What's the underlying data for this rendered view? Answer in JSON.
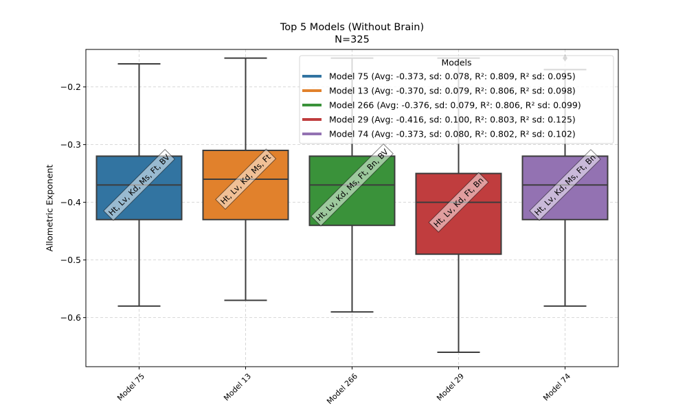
{
  "title": "Top 5 Models (Without Brain)",
  "subtitle": "N=325",
  "chart_data": {
    "type": "box",
    "title": "Top 5 Models (Without Brain)",
    "subtitle": "N=325",
    "xlabel": "",
    "ylabel": "Allometric Exponent",
    "ylim": [
      -0.685,
      -0.135
    ],
    "yticks": [
      -0.6,
      -0.5,
      -0.4,
      -0.3,
      -0.2
    ],
    "ytick_labels": [
      "−0.6",
      "−0.5",
      "−0.4",
      "−0.3",
      "−0.2"
    ],
    "grid": true,
    "legend": {
      "title": "Models",
      "position": "top-right"
    },
    "categories": [
      "Model 75",
      "Model 13",
      "Model 266",
      "Model 29",
      "Model 74"
    ],
    "boxes": [
      {
        "name": "Model 75",
        "color": "#3274a1",
        "whisker_low": -0.58,
        "q1": -0.43,
        "median": -0.37,
        "q3": -0.32,
        "whisker_high": -0.16,
        "outliers": [],
        "annotation": "Ht, Lv, Kd, Ms, Ft, BV",
        "legend": "Model 75 (Avg: -0.373, sd: 0.078, R²: 0.809, R² sd: 0.095)"
      },
      {
        "name": "Model 13",
        "color": "#e1812c",
        "whisker_low": -0.57,
        "q1": -0.43,
        "median": -0.36,
        "q3": -0.31,
        "whisker_high": -0.15,
        "outliers": [],
        "annotation": "Ht, Lv, Kd, Ms, Ft",
        "legend": "Model 13 (Avg: -0.370, sd: 0.079, R²: 0.806, R² sd: 0.098)"
      },
      {
        "name": "Model 266",
        "color": "#3a923a",
        "whisker_low": -0.59,
        "q1": -0.44,
        "median": -0.37,
        "q3": -0.32,
        "whisker_high": -0.15,
        "outliers": [],
        "annotation": "Ht, Lv, Kd, Ms, Ft, Bn, BV",
        "legend": "Model 266 (Avg: -0.376, sd: 0.079, R²: 0.806, R² sd: 0.099)"
      },
      {
        "name": "Model 29",
        "color": "#c03d3e",
        "whisker_low": -0.66,
        "q1": -0.49,
        "median": -0.4,
        "q3": -0.35,
        "whisker_high": -0.15,
        "outliers": [],
        "annotation": "Ht, Lv, Kd, Ft, Bn",
        "legend": "Model 29 (Avg: -0.416, sd: 0.100, R²: 0.803, R² sd: 0.125)"
      },
      {
        "name": "Model 74",
        "color": "#9372b2",
        "whisker_low": -0.58,
        "q1": -0.43,
        "median": -0.37,
        "q3": -0.32,
        "whisker_high": -0.17,
        "outliers": [
          -0.15
        ],
        "annotation": "Ht, Lv, Kd, Ms, Ft, Bn",
        "legend": "Model 74 (Avg: -0.373, sd: 0.080, R²: 0.802, R² sd: 0.102)"
      }
    ]
  }
}
